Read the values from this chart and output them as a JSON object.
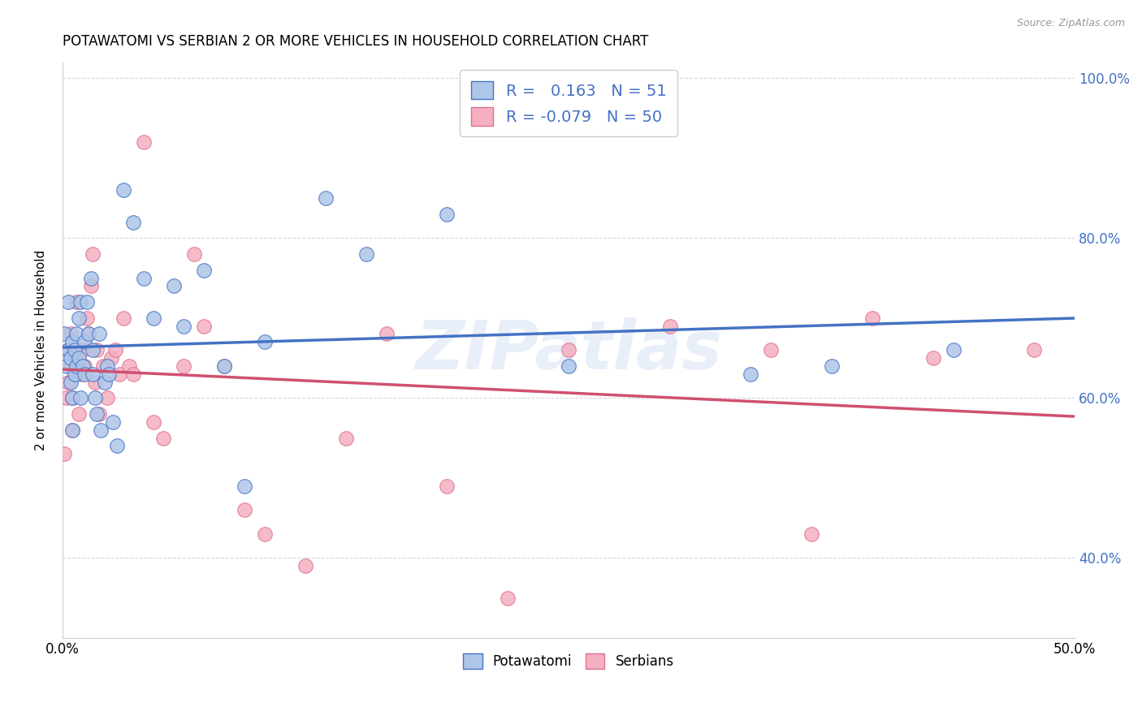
{
  "title": "POTAWATOMI VS SERBIAN 2 OR MORE VEHICLES IN HOUSEHOLD CORRELATION CHART",
  "source": "Source: ZipAtlas.com",
  "ylabel": "2 or more Vehicles in Household",
  "xlim": [
    0.0,
    0.5
  ],
  "ylim": [
    0.3,
    1.02
  ],
  "xtick_vals": [
    0.0,
    0.1,
    0.2,
    0.3,
    0.4,
    0.5
  ],
  "xtick_labels": [
    "0.0%",
    "",
    "",
    "",
    "",
    "50.0%"
  ],
  "ytick_vals": [
    0.4,
    0.6,
    0.8,
    1.0
  ],
  "ytick_labels_right": [
    "40.0%",
    "60.0%",
    "80.0%",
    "100.0%"
  ],
  "R_potawatomi": 0.163,
  "N_potawatomi": 51,
  "R_serbian": -0.079,
  "N_serbian": 50,
  "color_potawatomi_fill": "#aec6e8",
  "color_potawatomi_edge": "#4472c4",
  "color_serbian_fill": "#f4afc0",
  "color_serbian_edge": "#e07090",
  "color_line_potawatomi": "#4472c4",
  "color_line_serbian": "#d05070",
  "watermark": "ZIPatlas",
  "potawatomi_x": [
    0.001,
    0.002,
    0.003,
    0.003,
    0.004,
    0.004,
    0.005,
    0.005,
    0.005,
    0.006,
    0.006,
    0.007,
    0.007,
    0.008,
    0.008,
    0.009,
    0.009,
    0.01,
    0.011,
    0.011,
    0.012,
    0.013,
    0.014,
    0.015,
    0.015,
    0.016,
    0.017,
    0.018,
    0.019,
    0.021,
    0.022,
    0.023,
    0.025,
    0.027,
    0.03,
    0.035,
    0.04,
    0.045,
    0.055,
    0.06,
    0.07,
    0.08,
    0.09,
    0.1,
    0.13,
    0.15,
    0.19,
    0.25,
    0.34,
    0.38,
    0.44
  ],
  "potawatomi_y": [
    0.68,
    0.64,
    0.72,
    0.66,
    0.62,
    0.65,
    0.67,
    0.6,
    0.56,
    0.63,
    0.66,
    0.64,
    0.68,
    0.7,
    0.65,
    0.6,
    0.72,
    0.64,
    0.67,
    0.63,
    0.72,
    0.68,
    0.75,
    0.66,
    0.63,
    0.6,
    0.58,
    0.68,
    0.56,
    0.62,
    0.64,
    0.63,
    0.57,
    0.54,
    0.86,
    0.82,
    0.75,
    0.7,
    0.74,
    0.69,
    0.76,
    0.64,
    0.49,
    0.67,
    0.85,
    0.78,
    0.83,
    0.64,
    0.63,
    0.64,
    0.66
  ],
  "serbian_x": [
    0.001,
    0.002,
    0.003,
    0.003,
    0.004,
    0.004,
    0.005,
    0.005,
    0.006,
    0.007,
    0.008,
    0.009,
    0.01,
    0.011,
    0.012,
    0.013,
    0.014,
    0.015,
    0.016,
    0.017,
    0.018,
    0.02,
    0.022,
    0.024,
    0.026,
    0.028,
    0.03,
    0.033,
    0.035,
    0.04,
    0.045,
    0.05,
    0.06,
    0.065,
    0.07,
    0.08,
    0.09,
    0.1,
    0.12,
    0.14,
    0.16,
    0.19,
    0.22,
    0.25,
    0.3,
    0.35,
    0.37,
    0.4,
    0.43,
    0.48
  ],
  "serbian_y": [
    0.53,
    0.6,
    0.62,
    0.66,
    0.64,
    0.68,
    0.56,
    0.6,
    0.65,
    0.72,
    0.58,
    0.63,
    0.66,
    0.64,
    0.7,
    0.68,
    0.74,
    0.78,
    0.62,
    0.66,
    0.58,
    0.64,
    0.6,
    0.65,
    0.66,
    0.63,
    0.7,
    0.64,
    0.63,
    0.92,
    0.57,
    0.55,
    0.64,
    0.78,
    0.69,
    0.64,
    0.46,
    0.43,
    0.39,
    0.55,
    0.68,
    0.49,
    0.35,
    0.66,
    0.69,
    0.66,
    0.43,
    0.7,
    0.65,
    0.66
  ]
}
